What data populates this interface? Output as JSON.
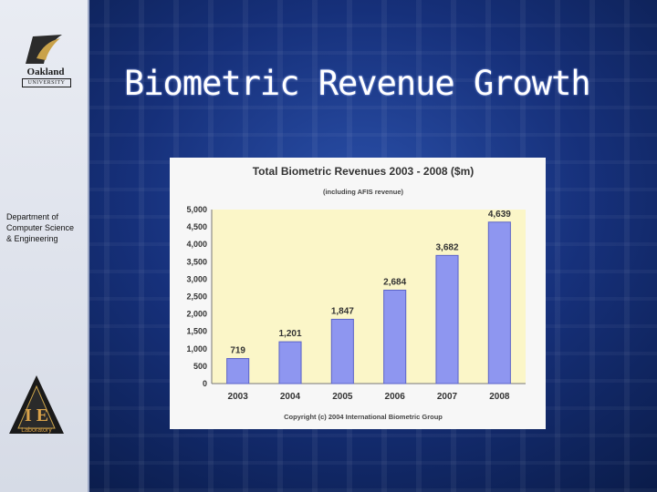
{
  "slide": {
    "title": "Biometric Revenue Growth",
    "department": [
      "Department of",
      "Computer Science",
      "& Engineering"
    ],
    "logo_text_1": "Oakland",
    "logo_text_2": "UNIVERSITY",
    "lab_logo_letters": "I E",
    "lab_logo_text": "Laboratory"
  },
  "chart_data": {
    "type": "bar",
    "title": "Total Biometric Revenues 2003 - 2008 ($m)",
    "subtitle": "(including AFIS revenue)",
    "categories": [
      "2003",
      "2004",
      "2005",
      "2006",
      "2007",
      "2008"
    ],
    "values": [
      719,
      1201,
      1847,
      2684,
      3682,
      4639
    ],
    "data_labels": [
      "719",
      "1,201",
      "1,847",
      "2,684",
      "3,682",
      "4,639"
    ],
    "yticks": [
      "0",
      "500",
      "1,000",
      "1,500",
      "2,000",
      "2,500",
      "3,000",
      "3,500",
      "4,000",
      "4,500",
      "5,000"
    ],
    "ylim": [
      0,
      5000
    ],
    "grid": false,
    "copyright": "Copyright (c) 2004 International Biometric Group",
    "colors": {
      "bar": "#8e96f0",
      "bar_edge": "#5c64c8",
      "plot_bg": "#fbf6c8",
      "text": "#333333"
    }
  }
}
